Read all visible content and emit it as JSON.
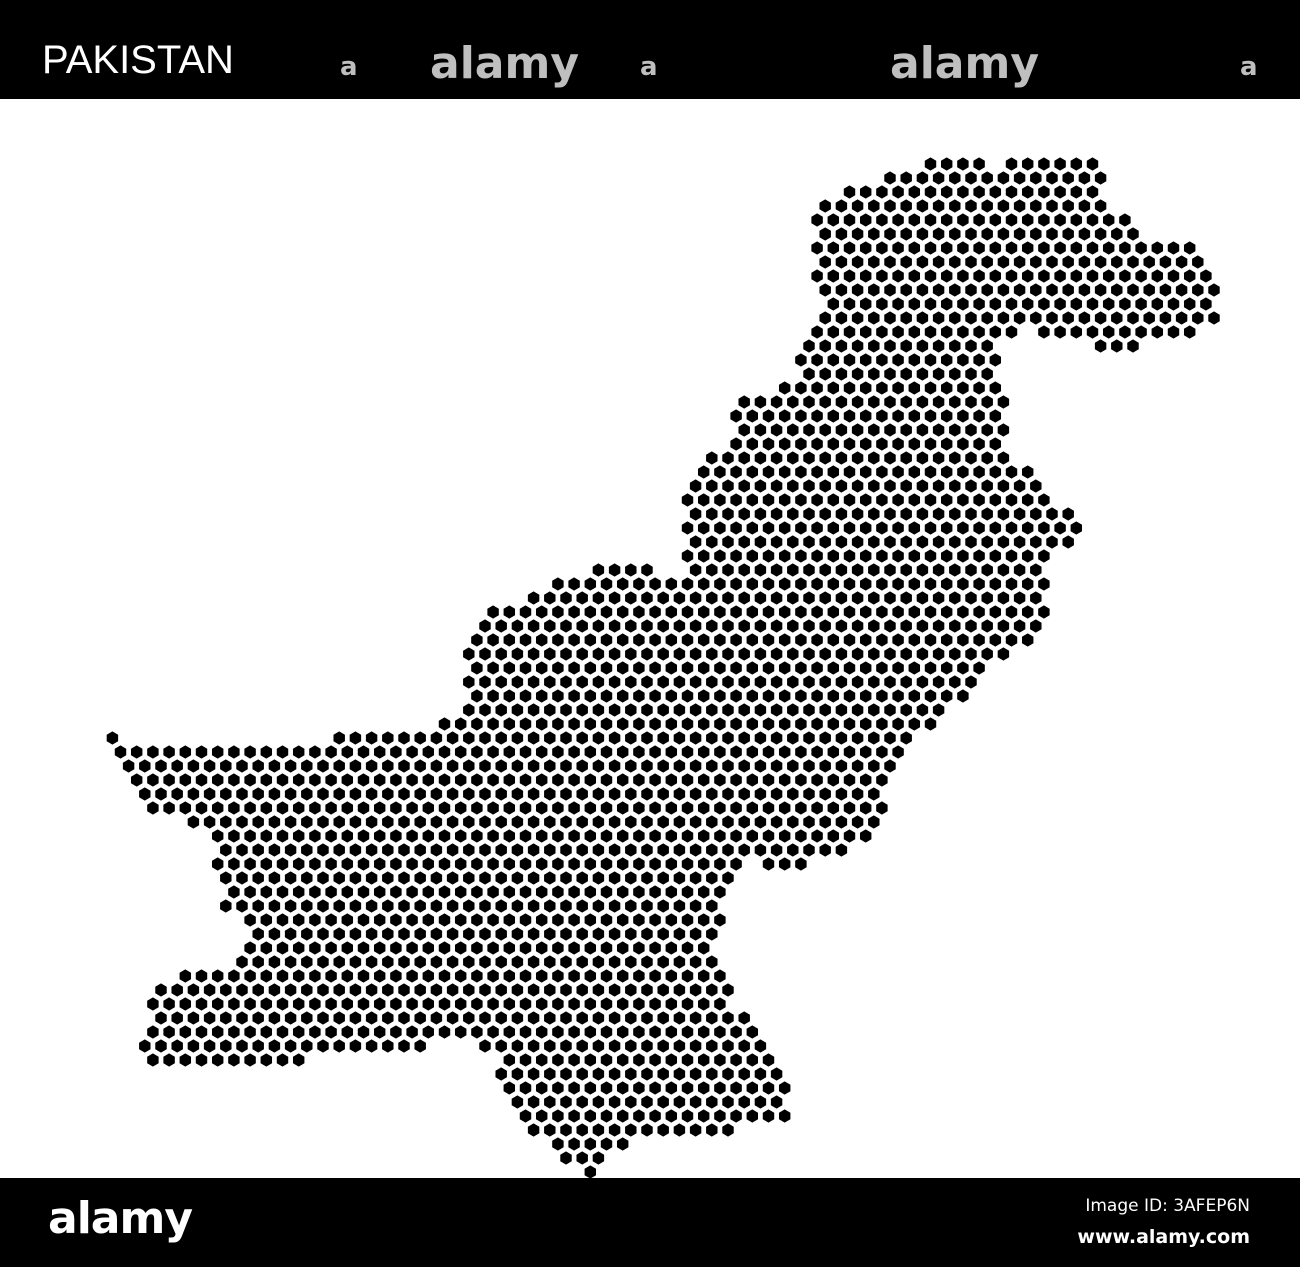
{
  "header": {
    "title": "PAKISTAN",
    "watermarks": [
      "alamy",
      "a",
      "a",
      "alamy",
      "a"
    ]
  },
  "map": {
    "country": "Pakistan",
    "style": "hexagon-dot",
    "dot_color": "#000000",
    "background": "#ffffff"
  },
  "footer": {
    "logo": "alamy",
    "image_id": "Image ID: 3AFEP6N",
    "url": "www.alamy.com"
  }
}
